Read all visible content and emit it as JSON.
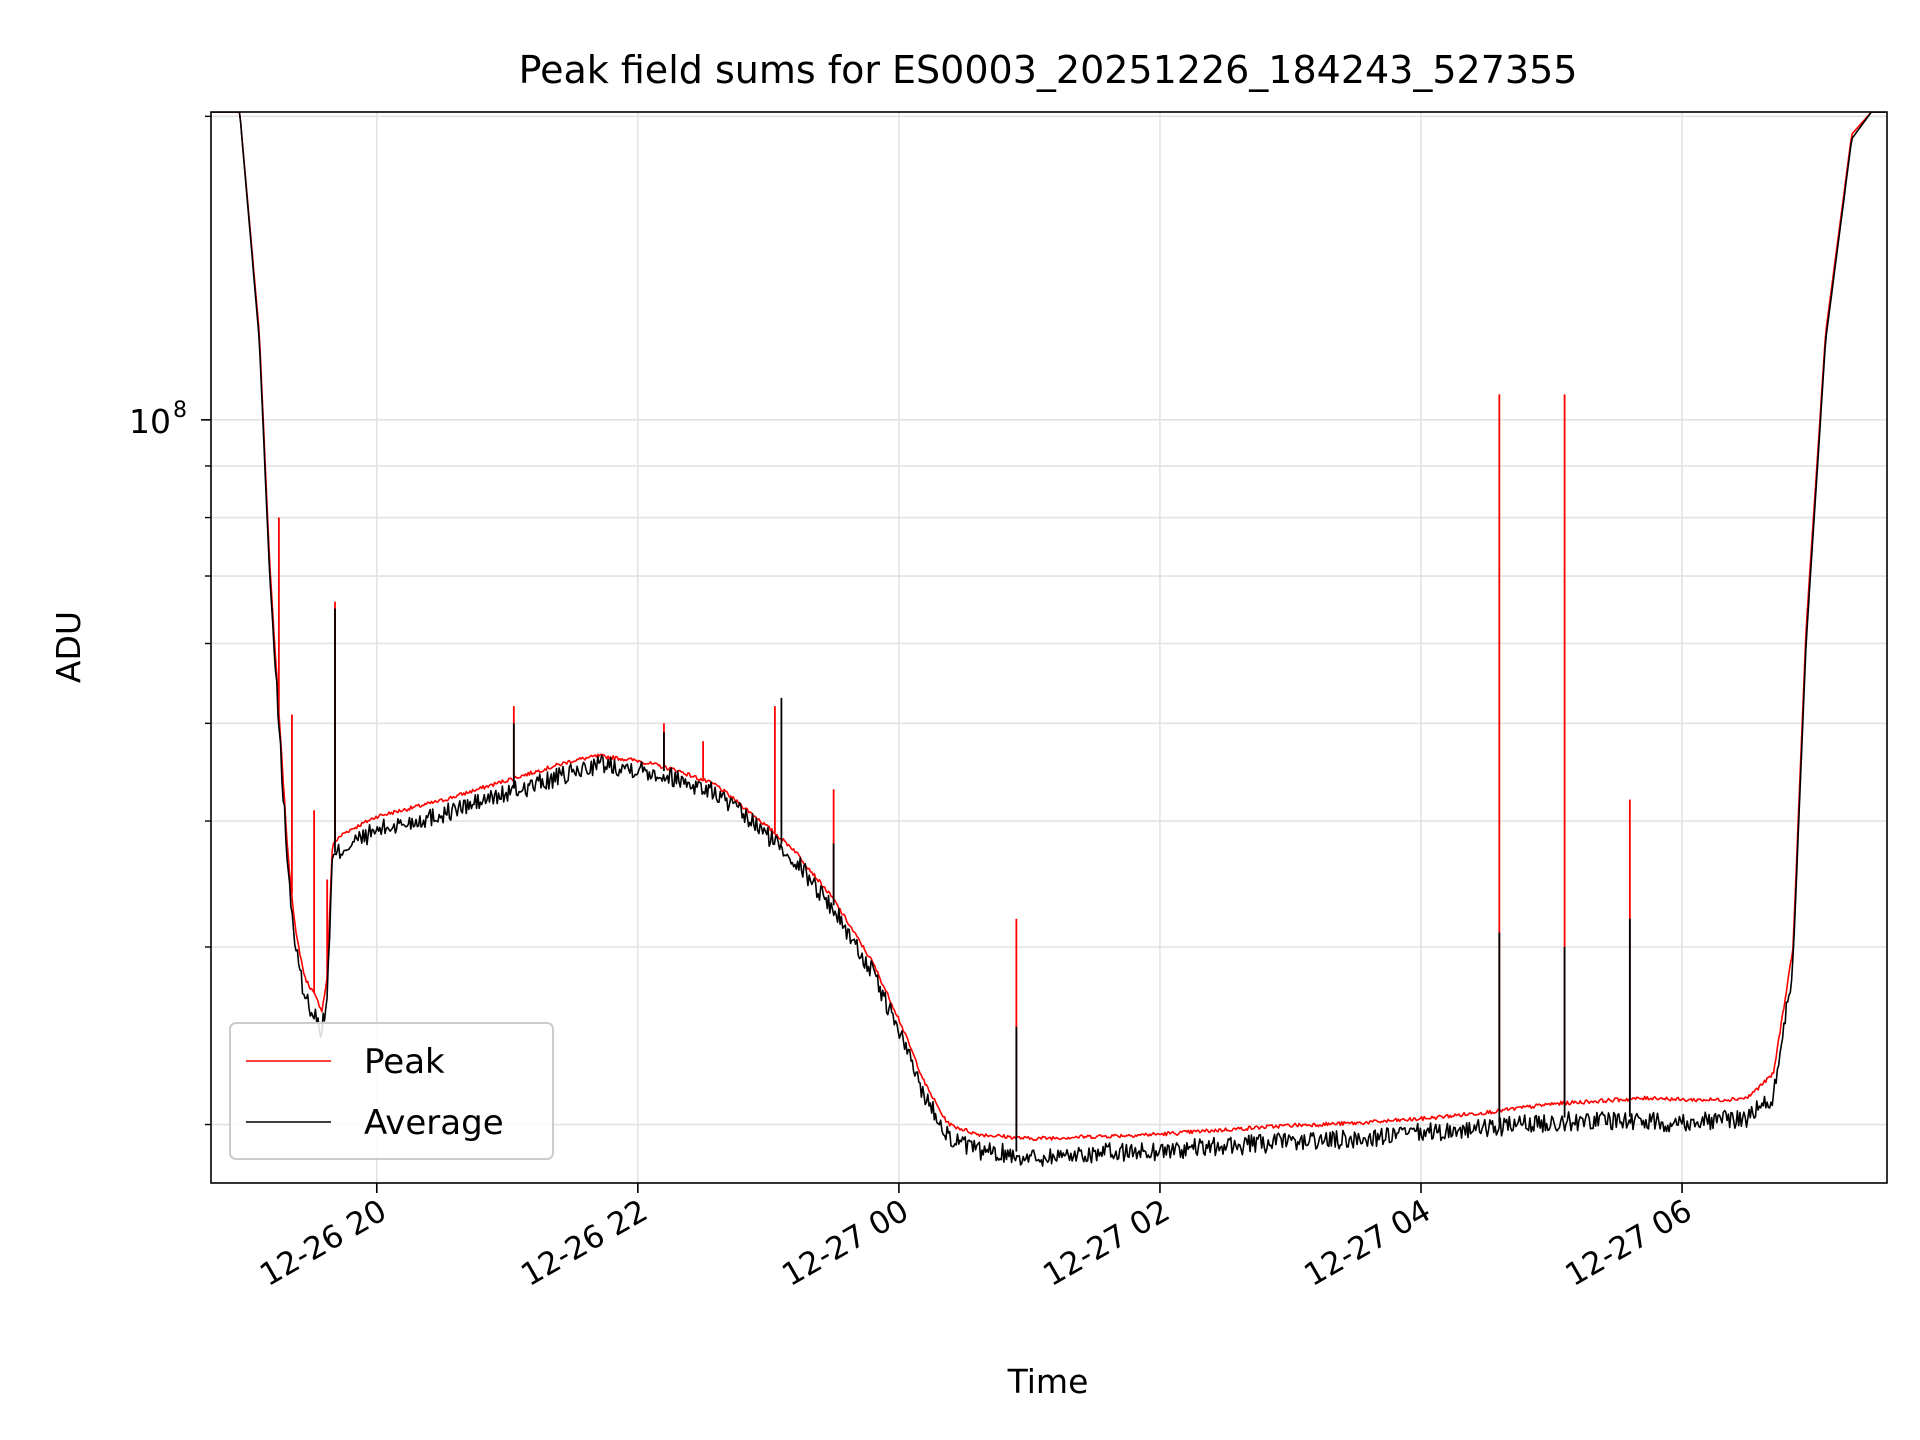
{
  "chart_data": {
    "type": "line",
    "title": "Peak field sums for ES0003_20251226_184243_527355",
    "xlabel": "Time",
    "ylabel": "ADU",
    "yscale": "log",
    "xlim_hours": [
      18.73,
      31.57
    ],
    "ylim": [
      17500000,
      202000000
    ],
    "x_ticks": [
      {
        "hour": 20,
        "label": "12-26 20"
      },
      {
        "hour": 22,
        "label": "12-26 22"
      },
      {
        "hour": 24,
        "label": "12-27 00"
      },
      {
        "hour": 26,
        "label": "12-27 02"
      },
      {
        "hour": 28,
        "label": "12-27 04"
      },
      {
        "hour": 30,
        "label": "12-27 06"
      }
    ],
    "y_major_ticks": [
      {
        "value": 100000000,
        "base": "10",
        "exp": "8"
      }
    ],
    "y_minor_ticks": [
      20000000,
      30000000,
      40000000,
      50000000,
      60000000,
      70000000,
      80000000,
      90000000,
      200000000
    ],
    "grid": true,
    "legend": {
      "placement": "lower-left",
      "entries": [
        "Peak",
        "Average"
      ]
    },
    "series": [
      {
        "name": "Average",
        "color": "#000000",
        "hours": [
          18.73,
          18.95,
          19.1,
          19.18,
          19.26,
          19.32,
          19.38,
          19.45,
          19.52,
          19.58,
          19.62,
          19.66,
          19.75,
          20.0,
          20.5,
          21.0,
          21.5,
          21.7,
          22.0,
          22.3,
          22.6,
          22.9,
          23.2,
          23.5,
          23.8,
          24.0,
          24.2,
          24.35,
          24.4,
          24.6,
          24.8,
          25.0,
          25.5,
          26.0,
          26.5,
          27.0,
          27.5,
          28.0,
          28.5,
          29.0,
          29.5,
          29.8,
          30.0,
          30.3,
          30.5,
          30.7,
          30.85,
          30.95,
          31.1,
          31.3,
          31.45,
          31.57
        ],
        "values": [
          202000000,
          202000000,
          120000000,
          70000000,
          48000000,
          36000000,
          30000000,
          27000000,
          26000000,
          25000000,
          27000000,
          37000000,
          38000000,
          39500000,
          41000000,
          43000000,
          45000000,
          46000000,
          45500000,
          44500000,
          43000000,
          40000000,
          37000000,
          33000000,
          28500000,
          25000000,
          21500000,
          20000000,
          19500000,
          19000000,
          18900000,
          18700000,
          18900000,
          19000000,
          19200000,
          19400000,
          19500000,
          19800000,
          20000000,
          20300000,
          20400000,
          20300000,
          20300000,
          20400000,
          20500000,
          21500000,
          29000000,
          60000000,
          120000000,
          190000000,
          202000000,
          202000000
        ],
        "spikes": [
          {
            "hour": 19.68,
            "value": 65000000
          },
          {
            "hour": 21.05,
            "value": 50000000
          },
          {
            "hour": 22.2,
            "value": 49000000
          },
          {
            "hour": 23.1,
            "value": 53000000
          },
          {
            "hour": 23.5,
            "value": 38000000
          },
          {
            "hour": 24.9,
            "value": 25000000
          },
          {
            "hour": 28.6,
            "value": 31000000
          },
          {
            "hour": 29.1,
            "value": 30000000
          },
          {
            "hour": 29.6,
            "value": 32000000
          }
        ]
      },
      {
        "name": "Peak",
        "color": "#ff0000",
        "hours": [
          18.73,
          18.95,
          19.1,
          19.18,
          19.26,
          19.32,
          19.38,
          19.45,
          19.52,
          19.58,
          19.62,
          19.66,
          19.75,
          20.0,
          20.5,
          21.0,
          21.5,
          21.7,
          22.0,
          22.3,
          22.6,
          22.9,
          23.2,
          23.5,
          23.8,
          24.0,
          24.2,
          24.35,
          24.4,
          24.6,
          24.8,
          25.0,
          25.5,
          26.0,
          26.5,
          27.0,
          27.5,
          28.0,
          28.5,
          29.0,
          29.5,
          29.8,
          30.0,
          30.3,
          30.5,
          30.7,
          30.85,
          30.95,
          31.1,
          31.3,
          31.45,
          31.57
        ],
        "values": [
          202000000,
          202000000,
          122000000,
          72000000,
          49000000,
          37000000,
          31000000,
          28000000,
          27000000,
          26000000,
          28000000,
          38000000,
          39000000,
          40500000,
          42000000,
          44000000,
          46000000,
          46500000,
          46000000,
          45000000,
          43500000,
          40500000,
          37500000,
          33500000,
          29000000,
          25500000,
          22000000,
          20300000,
          20000000,
          19600000,
          19500000,
          19400000,
          19500000,
          19600000,
          19800000,
          20000000,
          20100000,
          20300000,
          20600000,
          21000000,
          21200000,
          21300000,
          21200000,
          21200000,
          21300000,
          22500000,
          30000000,
          62000000,
          122000000,
          192000000,
          202000000,
          202000000
        ],
        "spikes": [
          {
            "hour": 19.25,
            "value": 80000000
          },
          {
            "hour": 19.35,
            "value": 51000000
          },
          {
            "hour": 19.52,
            "value": 41000000
          },
          {
            "hour": 19.62,
            "value": 35000000
          },
          {
            "hour": 19.68,
            "value": 66000000
          },
          {
            "hour": 21.05,
            "value": 52000000
          },
          {
            "hour": 22.2,
            "value": 50000000
          },
          {
            "hour": 22.5,
            "value": 48000000
          },
          {
            "hour": 23.05,
            "value": 52000000
          },
          {
            "hour": 23.5,
            "value": 43000000
          },
          {
            "hour": 24.9,
            "value": 32000000
          },
          {
            "hour": 28.6,
            "value": 106000000
          },
          {
            "hour": 29.1,
            "value": 106000000
          },
          {
            "hour": 29.6,
            "value": 42000000
          }
        ]
      }
    ]
  }
}
